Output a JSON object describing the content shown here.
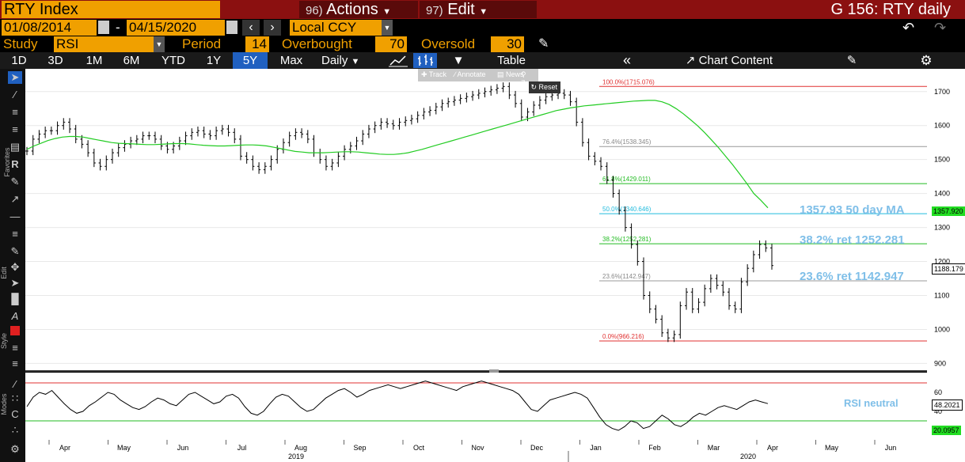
{
  "header": {
    "ticker": "RTY Index",
    "actions_num": "96)",
    "actions_label": "Actions",
    "edit_num": "97)",
    "edit_label": "Edit",
    "chart_title": "G 156: RTY daily"
  },
  "dates": {
    "start": "01/08/2014",
    "dash": "-",
    "end": "04/15/2020",
    "currency": "Local CCY"
  },
  "study": {
    "label": "Study",
    "value": "RSI",
    "period_label": "Period",
    "period": "14",
    "overbought_label": "Overbought",
    "overbought": "70",
    "oversold_label": "Oversold",
    "oversold": "30"
  },
  "tabs": [
    "1D",
    "3D",
    "1M",
    "6M",
    "YTD",
    "1Y",
    "5Y",
    "Max"
  ],
  "selected_tab": "5Y",
  "toolbar": {
    "freq": "Daily",
    "table": "Table",
    "chart_content": "Chart Content"
  },
  "toolbox": {
    "track": "Track",
    "annotate": "Annotate",
    "news": "News",
    "zoom": "Zoom",
    "reset": "Reset"
  },
  "sidebar": {
    "favorites": "Favorites",
    "edit": "Edit",
    "style": "Style",
    "modes": "Modes"
  },
  "colors": {
    "accent": "#f0a000",
    "header_red": "#8b1010",
    "ma_green": "#22cc22",
    "fib_red": "#e03030",
    "fib_gray": "#999999",
    "fib_green": "#22bb22",
    "fib_cyan": "#22bbdd",
    "annotation_blue": "#7fbfe8"
  },
  "annotations": {
    "ma": "1357.93 50 day MA",
    "ret382": "38.2% ret 1252.281",
    "ret236": "23.6% ret 1142.947",
    "rsi": "RSI neutral"
  },
  "fib_levels": [
    {
      "label": "100.0%(1715.076)",
      "value": 1715.076,
      "color": "#e03030"
    },
    {
      "label": "76.4%(1538.345)",
      "value": 1538.345,
      "color": "#999999"
    },
    {
      "label": "61.8%(1429.011)",
      "value": 1429.011,
      "color": "#22bb22"
    },
    {
      "label": "50.0%(1340.646)",
      "value": 1340.646,
      "color": "#22bbdd"
    },
    {
      "label": "38.2%(1252.281)",
      "value": 1252.281,
      "color": "#22bb22"
    },
    {
      "label": "23.6%(1142.947)",
      "value": 1142.947,
      "color": "#999999"
    },
    {
      "label": "0.0%(966.216)",
      "value": 966.216,
      "color": "#e03030"
    }
  ],
  "price_badges": {
    "ma": "1357.920",
    "last": "1188.179"
  },
  "rsi_badges": {
    "rsi": "48.2021",
    "other": "20.0957"
  },
  "chart_data": [
    {
      "type": "line",
      "title": "",
      "ylim": [
        880,
        1760
      ],
      "yticks": [
        900,
        1000,
        1100,
        1200,
        1300,
        1400,
        1500,
        1600,
        1700
      ],
      "x_labels": [
        "Apr",
        "May",
        "Jun",
        "Jul",
        "Aug",
        "Sep",
        "Oct",
        "Nov",
        "Dec",
        "Jan",
        "Feb",
        "Mar",
        "Apr",
        "May",
        "Jun"
      ],
      "year_labels": [
        "2019",
        "2020"
      ],
      "series": [
        {
          "name": "RTY",
          "values": [
            1525,
            1560,
            1575,
            1585,
            1585,
            1600,
            1610,
            1590,
            1560,
            1545,
            1520,
            1490,
            1480,
            1500,
            1520,
            1535,
            1545,
            1555,
            1560,
            1570,
            1570,
            1560,
            1540,
            1530,
            1540,
            1555,
            1570,
            1580,
            1585,
            1575,
            1570,
            1585,
            1590,
            1580,
            1560,
            1510,
            1500,
            1480,
            1470,
            1480,
            1500,
            1530,
            1550,
            1570,
            1580,
            1575,
            1560,
            1520,
            1500,
            1480,
            1490,
            1510,
            1530,
            1540,
            1555,
            1575,
            1590,
            1600,
            1610,
            1605,
            1600,
            1610,
            1615,
            1620,
            1630,
            1640,
            1645,
            1655,
            1665,
            1670,
            1675,
            1680,
            1685,
            1690,
            1695,
            1700,
            1705,
            1710,
            1715,
            1690,
            1665,
            1625,
            1640,
            1660,
            1675,
            1685,
            1690,
            1695,
            1690,
            1670,
            1610,
            1550,
            1510,
            1495,
            1480,
            1440,
            1400,
            1350,
            1300,
            1250,
            1200,
            1100,
            1060,
            1030,
            990,
            975,
            985,
            1070,
            1110,
            1060,
            1080,
            1120,
            1150,
            1130,
            1110,
            1070,
            1060,
            1140,
            1180,
            1220,
            1250,
            1240,
            1188
          ]
        },
        {
          "name": "50 day MA",
          "values": [
            1530,
            1540,
            1548,
            1556,
            1562,
            1566,
            1568,
            1568,
            1566,
            1562,
            1558,
            1554,
            1550,
            1548,
            1547,
            1546,
            1545,
            1544,
            1544,
            1545,
            1546,
            1547,
            1547,
            1546,
            1544,
            1542,
            1541,
            1540,
            1540,
            1541,
            1542,
            1543,
            1543,
            1542,
            1540,
            1536,
            1532,
            1528,
            1524,
            1522,
            1520,
            1520,
            1520,
            1521,
            1522,
            1523,
            1523,
            1522,
            1520,
            1518,
            1516,
            1515,
            1515,
            1517,
            1520,
            1525,
            1530,
            1536,
            1542,
            1548,
            1554,
            1560,
            1566,
            1572,
            1578,
            1584,
            1590,
            1596,
            1602,
            1608,
            1614,
            1620,
            1626,
            1632,
            1638,
            1644,
            1648,
            1652,
            1655,
            1658,
            1660,
            1662,
            1664,
            1666,
            1668,
            1670,
            1672,
            1673,
            1674,
            1674,
            1670,
            1662,
            1650,
            1635,
            1618,
            1600,
            1580,
            1558,
            1535,
            1510,
            1485,
            1458,
            1430,
            1400,
            1380,
            1357.93
          ]
        }
      ]
    },
    {
      "type": "line",
      "title": "RSI",
      "ylim": [
        10,
        80
      ],
      "yticks": [
        20,
        40,
        60
      ],
      "guides": [
        70,
        30
      ],
      "series": [
        {
          "name": "RSI",
          "values": [
            45,
            55,
            60,
            58,
            62,
            55,
            48,
            42,
            38,
            40,
            46,
            50,
            55,
            60,
            58,
            52,
            48,
            44,
            42,
            45,
            50,
            54,
            52,
            48,
            46,
            52,
            58,
            60,
            56,
            52,
            48,
            50,
            56,
            58,
            54,
            45,
            38,
            36,
            40,
            48,
            55,
            58,
            56,
            50,
            44,
            40,
            42,
            48,
            54,
            58,
            62,
            64,
            60,
            55,
            58,
            62,
            64,
            66,
            68,
            66,
            64,
            66,
            68,
            70,
            72,
            70,
            68,
            66,
            64,
            62,
            66,
            68,
            70,
            72,
            70,
            68,
            66,
            64,
            62,
            58,
            50,
            42,
            40,
            46,
            52,
            54,
            56,
            58,
            60,
            58,
            54,
            44,
            34,
            26,
            22,
            20,
            24,
            30,
            28,
            22,
            24,
            30,
            36,
            32,
            26,
            24,
            28,
            34,
            38,
            36,
            40,
            44,
            46,
            44,
            42,
            46,
            50,
            52,
            50,
            48.2021
          ]
        }
      ]
    }
  ],
  "axis_badge_rsi_top": "60",
  "axis_badge_rsi_bottom": "40"
}
